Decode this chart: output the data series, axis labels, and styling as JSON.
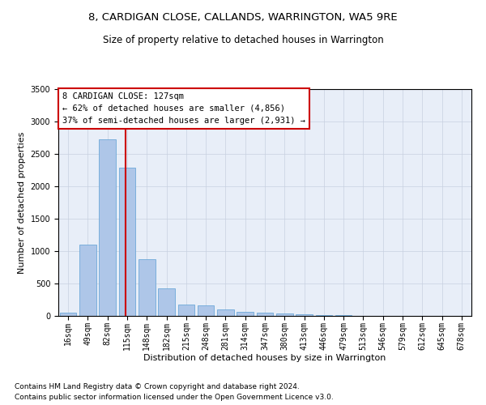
{
  "title1": "8, CARDIGAN CLOSE, CALLANDS, WARRINGTON, WA5 9RE",
  "title2": "Size of property relative to detached houses in Warrington",
  "xlabel": "Distribution of detached houses by size in Warrington",
  "ylabel": "Number of detached properties",
  "footnote1": "Contains HM Land Registry data © Crown copyright and database right 2024.",
  "footnote2": "Contains public sector information licensed under the Open Government Licence v3.0.",
  "annotation_title": "8 CARDIGAN CLOSE: 127sqm",
  "annotation_line1": "← 62% of detached houses are smaller (4,856)",
  "annotation_line2": "37% of semi-detached houses are larger (2,931) →",
  "bar_labels": [
    "16sqm",
    "49sqm",
    "82sqm",
    "115sqm",
    "148sqm",
    "182sqm",
    "215sqm",
    "248sqm",
    "281sqm",
    "314sqm",
    "347sqm",
    "380sqm",
    "413sqm",
    "446sqm",
    "479sqm",
    "513sqm",
    "546sqm",
    "579sqm",
    "612sqm",
    "645sqm",
    "678sqm"
  ],
  "bar_values": [
    50,
    1100,
    2730,
    2290,
    870,
    420,
    170,
    160,
    95,
    65,
    55,
    40,
    30,
    15,
    15,
    0,
    0,
    0,
    0,
    0,
    0
  ],
  "bar_color": "#aec6e8",
  "bar_edge_color": "#5a9fd4",
  "vline_color": "#cc0000",
  "vline_position": 3,
  "ylim": [
    0,
    3500
  ],
  "yticks": [
    0,
    500,
    1000,
    1500,
    2000,
    2500,
    3000,
    3500
  ],
  "grid_color": "#c8d0e0",
  "bg_color": "#e8eef8",
  "box_color": "#cc0000",
  "title_fontsize": 9.5,
  "subtitle_fontsize": 8.5,
  "axis_label_fontsize": 8,
  "tick_fontsize": 7,
  "annotation_fontsize": 7.5,
  "footnote_fontsize": 6.5
}
